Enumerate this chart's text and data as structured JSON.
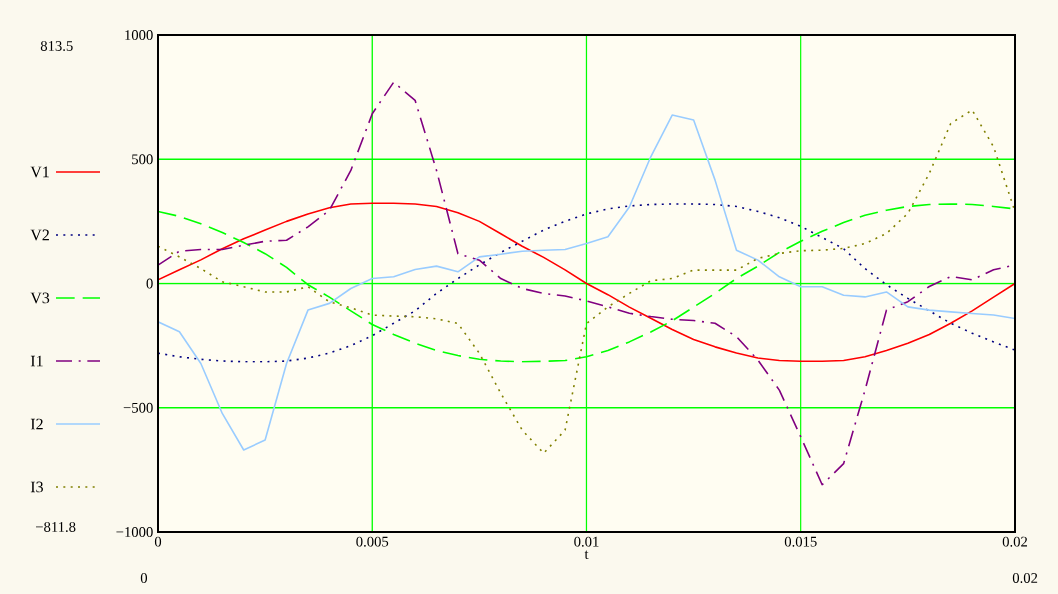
{
  "chart_data": {
    "type": "line",
    "xlabel": "t",
    "x": [
      0,
      0.0005,
      0.001,
      0.0015,
      0.002,
      0.0025,
      0.003,
      0.0035,
      0.004,
      0.0045,
      0.005,
      0.0055,
      0.006,
      0.0065,
      0.007,
      0.0075,
      0.008,
      0.0085,
      0.009,
      0.0095,
      0.01,
      0.0105,
      0.011,
      0.0115,
      0.012,
      0.0125,
      0.013,
      0.0135,
      0.014,
      0.0145,
      0.015,
      0.0155,
      0.016,
      0.0165,
      0.017,
      0.0175,
      0.018,
      0.0185,
      0.019,
      0.0195,
      0.02
    ],
    "series": [
      {
        "name": "V1",
        "color": "#ff0000",
        "line_style": "solid",
        "values": [
          15,
          55,
          95,
          140,
          180,
          215,
          250,
          280,
          305,
          320,
          323,
          323,
          320,
          310,
          285,
          250,
          200,
          150,
          105,
          55,
          0,
          -45,
          -95,
          -140,
          -185,
          -225,
          -255,
          -280,
          -300,
          -310,
          -313,
          -313,
          -310,
          -295,
          -270,
          -240,
          -205,
          -160,
          -110,
          -55,
          0
        ]
      },
      {
        "name": "V2",
        "color": "#000080",
        "line_style": "dotted",
        "values": [
          -280,
          -295,
          -305,
          -312,
          -315,
          -315,
          -312,
          -300,
          -280,
          -250,
          -210,
          -160,
          -110,
          -40,
          20,
          75,
          125,
          170,
          215,
          250,
          280,
          300,
          312,
          318,
          320,
          320,
          318,
          310,
          290,
          265,
          230,
          185,
          140,
          60,
          -5,
          -60,
          -110,
          -160,
          -200,
          -235,
          -268
        ]
      },
      {
        "name": "V3",
        "color": "#00ff00",
        "line_style": "dashed",
        "values": [
          290,
          270,
          240,
          205,
          165,
          120,
          65,
          -5,
          -55,
          -110,
          -165,
          -205,
          -240,
          -270,
          -290,
          -305,
          -312,
          -315,
          -313,
          -310,
          -295,
          -270,
          -235,
          -195,
          -150,
          -95,
          -40,
          20,
          70,
          125,
          170,
          210,
          245,
          275,
          295,
          310,
          318,
          320,
          318,
          310,
          300
        ]
      },
      {
        "name": "I1",
        "color": "#800080",
        "line_style": "dashdot",
        "values": [
          74,
          130,
          137,
          137,
          154,
          170,
          174,
          228,
          295,
          455,
          683,
          810,
          737,
          455,
          120,
          94,
          20,
          -20,
          -40,
          -50,
          -70,
          -94,
          -120,
          -133,
          -144,
          -149,
          -160,
          -214,
          -308,
          -429,
          -617,
          -810,
          -725,
          -429,
          -107,
          -73,
          -12,
          28,
          15,
          55,
          75
        ]
      },
      {
        "name": "I2",
        "color": "#99ccff",
        "line_style": "solid",
        "values": [
          -154,
          -194,
          -322,
          -523,
          -670,
          -630,
          -322,
          -107,
          -80,
          -20,
          20,
          27,
          56,
          70,
          47,
          107,
          118,
          130,
          134,
          137,
          161,
          188,
          308,
          510,
          678,
          658,
          416,
          134,
          94,
          27,
          -13,
          -13,
          -47,
          -54,
          -34,
          -94,
          -107,
          -114,
          -121,
          -127,
          -141
        ]
      },
      {
        "name": "I3",
        "color": "#808000",
        "line_style": "dotted",
        "values": [
          150,
          107,
          60,
          7,
          -13,
          -34,
          -34,
          -13,
          -74,
          -98,
          -127,
          -131,
          -134,
          -142,
          -161,
          -281,
          -442,
          -590,
          -683,
          -590,
          -161,
          -94,
          -40,
          11,
          20,
          54,
          54,
          54,
          101,
          121,
          132,
          134,
          141,
          161,
          201,
          282,
          443,
          644,
          698,
          550,
          289
        ]
      }
    ],
    "xlim": [
      0,
      0.02
    ],
    "ylim": [
      -1000,
      1000
    ],
    "xticks": [
      0,
      0.005,
      0.01,
      0.015,
      0.02
    ],
    "yticks": [
      {
        "value": -1000,
        "label": "−1000"
      },
      {
        "value": -500,
        "label": "−500"
      },
      0,
      500,
      1000
    ],
    "grid": true,
    "legend": "left",
    "annotations": [
      "813.5",
      "−811.8",
      "0",
      "0.02"
    ]
  }
}
